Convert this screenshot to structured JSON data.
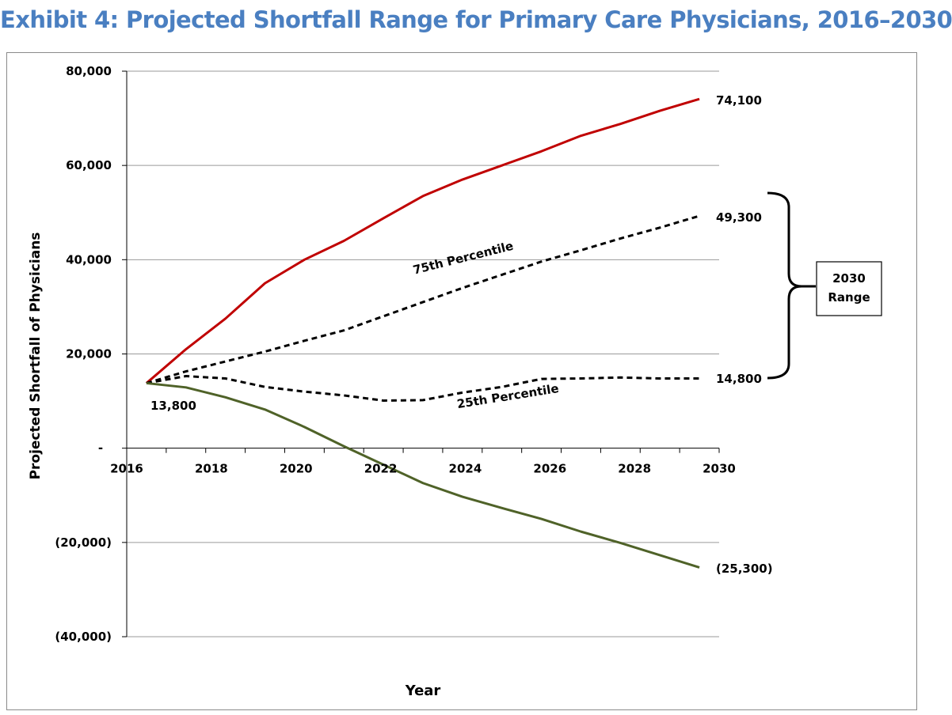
{
  "colors": {
    "title": "#4a7fc1",
    "max_series": "#c00000",
    "min_series": "#4f6228",
    "percentile": "#000000",
    "grid": "#9a9a9a"
  },
  "title": "Exhibit 4: Projected Shortfall Range for Primary Care Physicians, 2016–2030",
  "chart_data": {
    "type": "line",
    "title": "Exhibit 4: Projected Shortfall Range for Primary Care Physicians, 2016–2030",
    "xlabel": "Year",
    "ylabel": "Projected Shortfall of Physicians",
    "xlim": [
      2016,
      2030
    ],
    "ylim": [
      -40000,
      80000
    ],
    "x_ticks": [
      "2016",
      "2018",
      "2020",
      "2022",
      "2024",
      "2026",
      "2028",
      "2030"
    ],
    "y_ticks": [
      {
        "value": 80000,
        "label": "80,000"
      },
      {
        "value": 60000,
        "label": "60,000"
      },
      {
        "value": 40000,
        "label": "40,000"
      },
      {
        "value": 20000,
        "label": "20,000"
      },
      {
        "value": 0,
        "label": "-"
      },
      {
        "value": -20000,
        "label": "(20,000)"
      },
      {
        "value": -40000,
        "label": "(40,000)"
      }
    ],
    "grid": true,
    "x": [
      2016,
      2017,
      2018,
      2019,
      2020,
      2021,
      2022,
      2023,
      2024,
      2025,
      2026,
      2027,
      2028,
      2029,
      2030
    ],
    "series": [
      {
        "key": "max",
        "style": "solid",
        "values": [
          13800,
          21000,
          27500,
          35000,
          40000,
          44000,
          48800,
          53500,
          57000,
          60000,
          63000,
          66300,
          68800,
          71600,
          74100
        ]
      },
      {
        "key": "p75",
        "name": "75th Percentile",
        "style": "dashed",
        "values": [
          13800,
          16300,
          18400,
          20500,
          22800,
          25000,
          28000,
          31000,
          34000,
          36800,
          39600,
          42000,
          44500,
          46800,
          49300
        ]
      },
      {
        "key": "p25",
        "name": "25th Percentile",
        "style": "dashed",
        "values": [
          13800,
          15300,
          14800,
          13000,
          12000,
          11200,
          10100,
          10200,
          11800,
          13000,
          14700,
          14800,
          15000,
          14800,
          14800
        ]
      },
      {
        "key": "min",
        "style": "solid",
        "values": [
          13800,
          12900,
          10800,
          8200,
          4500,
          400,
          -3500,
          -7400,
          -10300,
          -12700,
          -15000,
          -17700,
          -20100,
          -22700,
          -25300
        ]
      }
    ],
    "data_labels": {
      "start": "13,800",
      "max_end": "74,100",
      "p75_end": "49,300",
      "p25_end": "14,800",
      "min_end": "(25,300)"
    },
    "annotations": {
      "range_label_line1": "2030",
      "range_label_line2": "Range"
    }
  }
}
